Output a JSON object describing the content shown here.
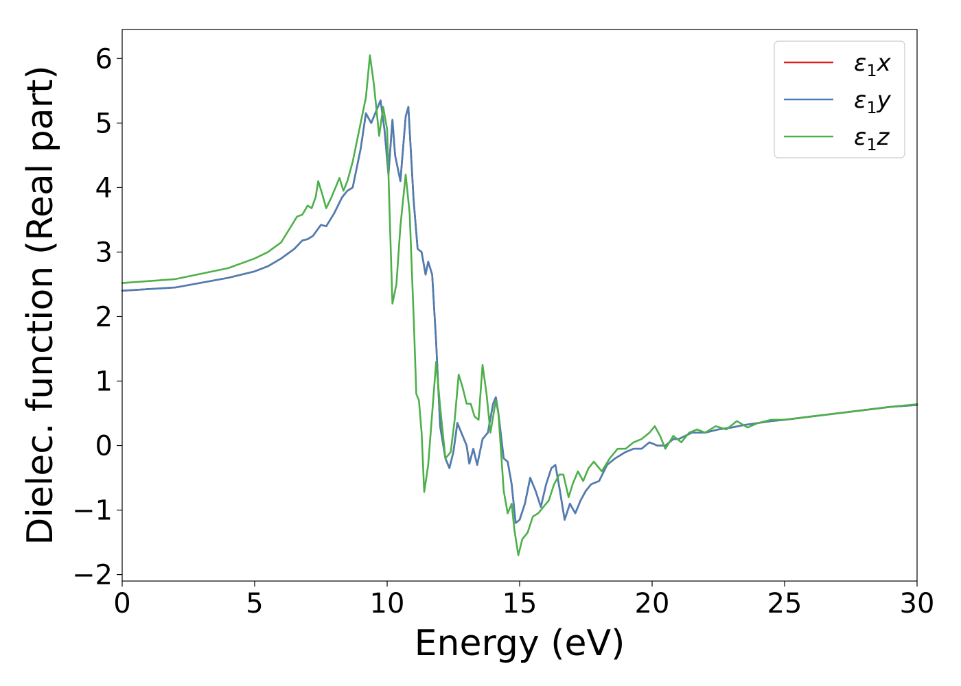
{
  "chart_data": {
    "type": "line",
    "xlabel": "Energy (eV)",
    "ylabel": "Dielec. function (Real part)",
    "xlim": [
      0,
      30
    ],
    "ylim": [
      -2.1,
      6.45
    ],
    "x_ticks": [
      0,
      5,
      10,
      15,
      20,
      25,
      30
    ],
    "x_tick_labels": [
      "0",
      "5",
      "10",
      "15",
      "20",
      "25",
      "30"
    ],
    "y_ticks": [
      -2,
      -1,
      0,
      1,
      2,
      3,
      4,
      5,
      6
    ],
    "y_tick_labels": [
      "−2",
      "−1",
      "0",
      "1",
      "2",
      "3",
      "4",
      "5",
      "6"
    ],
    "grid": false,
    "legend_position": "top-right",
    "series": [
      {
        "name": "ε1x",
        "legend": {
          "base": "ε",
          "sub": "1",
          "suffix": "x"
        },
        "color": "#e41a1c",
        "points": [
          [
            0,
            2.4
          ],
          [
            2,
            2.45
          ],
          [
            4,
            2.6
          ],
          [
            5,
            2.7
          ],
          [
            5.5,
            2.78
          ],
          [
            6,
            2.9
          ],
          [
            6.5,
            3.05
          ],
          [
            6.8,
            3.18
          ],
          [
            7.0,
            3.2
          ],
          [
            7.2,
            3.25
          ],
          [
            7.5,
            3.42
          ],
          [
            7.7,
            3.4
          ],
          [
            8,
            3.6
          ],
          [
            8.3,
            3.85
          ],
          [
            8.5,
            3.95
          ],
          [
            8.7,
            4.0
          ],
          [
            9.0,
            4.6
          ],
          [
            9.2,
            5.15
          ],
          [
            9.4,
            5.0
          ],
          [
            9.6,
            5.2
          ],
          [
            9.75,
            5.35
          ],
          [
            9.9,
            4.9
          ],
          [
            10.05,
            4.2
          ],
          [
            10.2,
            5.05
          ],
          [
            10.3,
            4.5
          ],
          [
            10.5,
            4.1
          ],
          [
            10.7,
            5.1
          ],
          [
            10.8,
            5.25
          ],
          [
            11.0,
            3.8
          ],
          [
            11.15,
            3.05
          ],
          [
            11.3,
            3.0
          ],
          [
            11.45,
            2.65
          ],
          [
            11.55,
            2.85
          ],
          [
            11.7,
            2.65
          ],
          [
            11.85,
            1.6
          ],
          [
            12.0,
            0.3
          ],
          [
            12.2,
            -0.2
          ],
          [
            12.35,
            -0.35
          ],
          [
            12.5,
            -0.1
          ],
          [
            12.65,
            0.35
          ],
          [
            12.8,
            0.2
          ],
          [
            13.0,
            0.0
          ],
          [
            13.1,
            -0.28
          ],
          [
            13.25,
            -0.05
          ],
          [
            13.4,
            -0.3
          ],
          [
            13.6,
            0.1
          ],
          [
            13.8,
            0.2
          ],
          [
            14.0,
            0.65
          ],
          [
            14.1,
            0.75
          ],
          [
            14.2,
            0.5
          ],
          [
            14.4,
            -0.2
          ],
          [
            14.55,
            -0.25
          ],
          [
            14.7,
            -0.6
          ],
          [
            14.85,
            -1.2
          ],
          [
            15.0,
            -1.15
          ],
          [
            15.2,
            -0.9
          ],
          [
            15.4,
            -0.5
          ],
          [
            15.6,
            -0.7
          ],
          [
            15.8,
            -0.95
          ],
          [
            16.0,
            -0.6
          ],
          [
            16.2,
            -0.35
          ],
          [
            16.35,
            -0.3
          ],
          [
            16.5,
            -0.65
          ],
          [
            16.7,
            -1.15
          ],
          [
            16.9,
            -0.9
          ],
          [
            17.1,
            -1.05
          ],
          [
            17.3,
            -0.85
          ],
          [
            17.5,
            -0.7
          ],
          [
            17.7,
            -0.6
          ],
          [
            18.0,
            -0.55
          ],
          [
            18.3,
            -0.3
          ],
          [
            18.6,
            -0.2
          ],
          [
            19.0,
            -0.1
          ],
          [
            19.3,
            -0.05
          ],
          [
            19.6,
            -0.05
          ],
          [
            19.9,
            0.05
          ],
          [
            20.2,
            0.0
          ],
          [
            20.5,
            0.0
          ],
          [
            20.8,
            0.1
          ],
          [
            21.0,
            0.1
          ],
          [
            21.5,
            0.2
          ],
          [
            22,
            0.2
          ],
          [
            22.5,
            0.25
          ],
          [
            23,
            0.28
          ],
          [
            23.5,
            0.32
          ],
          [
            24,
            0.35
          ],
          [
            24.5,
            0.38
          ],
          [
            25,
            0.4
          ],
          [
            26,
            0.45
          ],
          [
            27,
            0.5
          ],
          [
            28,
            0.55
          ],
          [
            29,
            0.6
          ],
          [
            30,
            0.63
          ]
        ]
      },
      {
        "name": "ε1y",
        "legend": {
          "base": "ε",
          "sub": "1",
          "suffix": "y"
        },
        "color": "#4a7fb5",
        "points": [
          [
            0,
            2.4
          ],
          [
            2,
            2.45
          ],
          [
            4,
            2.6
          ],
          [
            5,
            2.7
          ],
          [
            5.5,
            2.78
          ],
          [
            6,
            2.9
          ],
          [
            6.5,
            3.05
          ],
          [
            6.8,
            3.18
          ],
          [
            7.0,
            3.2
          ],
          [
            7.2,
            3.25
          ],
          [
            7.5,
            3.42
          ],
          [
            7.7,
            3.4
          ],
          [
            8,
            3.6
          ],
          [
            8.3,
            3.85
          ],
          [
            8.5,
            3.95
          ],
          [
            8.7,
            4.0
          ],
          [
            9.0,
            4.6
          ],
          [
            9.2,
            5.15
          ],
          [
            9.4,
            5.0
          ],
          [
            9.6,
            5.2
          ],
          [
            9.75,
            5.35
          ],
          [
            9.9,
            4.9
          ],
          [
            10.05,
            4.2
          ],
          [
            10.2,
            5.05
          ],
          [
            10.3,
            4.5
          ],
          [
            10.5,
            4.1
          ],
          [
            10.7,
            5.1
          ],
          [
            10.8,
            5.25
          ],
          [
            11.0,
            3.8
          ],
          [
            11.15,
            3.05
          ],
          [
            11.3,
            3.0
          ],
          [
            11.45,
            2.65
          ],
          [
            11.55,
            2.85
          ],
          [
            11.7,
            2.65
          ],
          [
            11.85,
            1.6
          ],
          [
            12.0,
            0.3
          ],
          [
            12.2,
            -0.2
          ],
          [
            12.35,
            -0.35
          ],
          [
            12.5,
            -0.1
          ],
          [
            12.65,
            0.35
          ],
          [
            12.8,
            0.2
          ],
          [
            13.0,
            0.0
          ],
          [
            13.1,
            -0.28
          ],
          [
            13.25,
            -0.05
          ],
          [
            13.4,
            -0.3
          ],
          [
            13.6,
            0.1
          ],
          [
            13.8,
            0.2
          ],
          [
            14.0,
            0.65
          ],
          [
            14.1,
            0.75
          ],
          [
            14.2,
            0.5
          ],
          [
            14.4,
            -0.2
          ],
          [
            14.55,
            -0.25
          ],
          [
            14.7,
            -0.6
          ],
          [
            14.85,
            -1.2
          ],
          [
            15.0,
            -1.15
          ],
          [
            15.2,
            -0.9
          ],
          [
            15.4,
            -0.5
          ],
          [
            15.6,
            -0.7
          ],
          [
            15.8,
            -0.95
          ],
          [
            16.0,
            -0.6
          ],
          [
            16.2,
            -0.35
          ],
          [
            16.35,
            -0.3
          ],
          [
            16.5,
            -0.65
          ],
          [
            16.7,
            -1.15
          ],
          [
            16.9,
            -0.9
          ],
          [
            17.1,
            -1.05
          ],
          [
            17.3,
            -0.85
          ],
          [
            17.5,
            -0.7
          ],
          [
            17.7,
            -0.6
          ],
          [
            18.0,
            -0.55
          ],
          [
            18.3,
            -0.3
          ],
          [
            18.6,
            -0.2
          ],
          [
            19.0,
            -0.1
          ],
          [
            19.3,
            -0.05
          ],
          [
            19.6,
            -0.05
          ],
          [
            19.9,
            0.05
          ],
          [
            20.2,
            0.0
          ],
          [
            20.5,
            0.0
          ],
          [
            20.8,
            0.1
          ],
          [
            21.0,
            0.1
          ],
          [
            21.5,
            0.2
          ],
          [
            22,
            0.2
          ],
          [
            22.5,
            0.25
          ],
          [
            23,
            0.28
          ],
          [
            23.5,
            0.32
          ],
          [
            24,
            0.35
          ],
          [
            24.5,
            0.38
          ],
          [
            25,
            0.4
          ],
          [
            26,
            0.45
          ],
          [
            27,
            0.5
          ],
          [
            28,
            0.55
          ],
          [
            29,
            0.6
          ],
          [
            30,
            0.63
          ]
        ]
      },
      {
        "name": "ε1z",
        "legend": {
          "base": "ε",
          "sub": "1",
          "suffix": "z"
        },
        "color": "#4daf4a",
        "points": [
          [
            0,
            2.52
          ],
          [
            2,
            2.58
          ],
          [
            4,
            2.75
          ],
          [
            5,
            2.9
          ],
          [
            5.5,
            3.0
          ],
          [
            6,
            3.15
          ],
          [
            6.3,
            3.35
          ],
          [
            6.6,
            3.55
          ],
          [
            6.8,
            3.58
          ],
          [
            7.0,
            3.72
          ],
          [
            7.15,
            3.68
          ],
          [
            7.3,
            3.85
          ],
          [
            7.4,
            4.1
          ],
          [
            7.55,
            3.9
          ],
          [
            7.7,
            3.68
          ],
          [
            7.9,
            3.85
          ],
          [
            8.1,
            4.05
          ],
          [
            8.2,
            4.15
          ],
          [
            8.35,
            3.95
          ],
          [
            8.5,
            4.1
          ],
          [
            8.7,
            4.4
          ],
          [
            9.0,
            5.0
          ],
          [
            9.2,
            5.4
          ],
          [
            9.35,
            6.05
          ],
          [
            9.5,
            5.6
          ],
          [
            9.7,
            4.8
          ],
          [
            9.85,
            5.25
          ],
          [
            10.0,
            4.9
          ],
          [
            10.1,
            3.5
          ],
          [
            10.2,
            2.2
          ],
          [
            10.35,
            2.5
          ],
          [
            10.5,
            3.4
          ],
          [
            10.7,
            4.2
          ],
          [
            10.85,
            3.6
          ],
          [
            11.0,
            2.0
          ],
          [
            11.1,
            0.8
          ],
          [
            11.2,
            0.7
          ],
          [
            11.3,
            0.2
          ],
          [
            11.4,
            -0.72
          ],
          [
            11.55,
            -0.3
          ],
          [
            11.7,
            0.5
          ],
          [
            11.85,
            1.3
          ],
          [
            12.0,
            0.6
          ],
          [
            12.2,
            -0.2
          ],
          [
            12.4,
            -0.1
          ],
          [
            12.55,
            0.4
          ],
          [
            12.7,
            1.1
          ],
          [
            12.85,
            0.9
          ],
          [
            13.0,
            0.65
          ],
          [
            13.15,
            0.65
          ],
          [
            13.3,
            0.45
          ],
          [
            13.45,
            0.4
          ],
          [
            13.6,
            1.25
          ],
          [
            13.75,
            0.8
          ],
          [
            13.9,
            0.2
          ],
          [
            14.1,
            0.7
          ],
          [
            14.2,
            0.5
          ],
          [
            14.4,
            -0.7
          ],
          [
            14.55,
            -1.05
          ],
          [
            14.7,
            -0.9
          ],
          [
            14.8,
            -1.3
          ],
          [
            14.95,
            -1.7
          ],
          [
            15.1,
            -1.45
          ],
          [
            15.3,
            -1.35
          ],
          [
            15.5,
            -1.1
          ],
          [
            15.7,
            -1.05
          ],
          [
            15.9,
            -0.95
          ],
          [
            16.1,
            -0.85
          ],
          [
            16.3,
            -0.6
          ],
          [
            16.5,
            -0.45
          ],
          [
            16.65,
            -0.45
          ],
          [
            16.85,
            -0.8
          ],
          [
            17.0,
            -0.6
          ],
          [
            17.2,
            -0.4
          ],
          [
            17.4,
            -0.55
          ],
          [
            17.6,
            -0.35
          ],
          [
            17.8,
            -0.25
          ],
          [
            18.1,
            -0.4
          ],
          [
            18.4,
            -0.2
          ],
          [
            18.7,
            -0.05
          ],
          [
            19.0,
            -0.05
          ],
          [
            19.3,
            0.05
          ],
          [
            19.6,
            0.1
          ],
          [
            19.9,
            0.2
          ],
          [
            20.1,
            0.3
          ],
          [
            20.3,
            0.15
          ],
          [
            20.5,
            -0.05
          ],
          [
            20.8,
            0.15
          ],
          [
            21.1,
            0.05
          ],
          [
            21.4,
            0.2
          ],
          [
            21.7,
            0.25
          ],
          [
            22.0,
            0.2
          ],
          [
            22.4,
            0.3
          ],
          [
            22.8,
            0.25
          ],
          [
            23.2,
            0.38
          ],
          [
            23.6,
            0.28
          ],
          [
            24.0,
            0.35
          ],
          [
            24.5,
            0.4
          ],
          [
            25,
            0.4
          ],
          [
            26,
            0.45
          ],
          [
            27,
            0.5
          ],
          [
            28,
            0.55
          ],
          [
            29,
            0.6
          ],
          [
            30,
            0.64
          ]
        ]
      }
    ]
  }
}
